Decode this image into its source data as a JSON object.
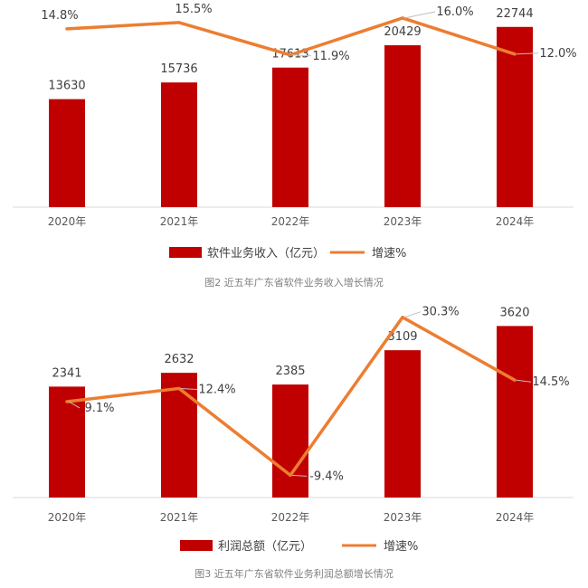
{
  "chart_data": [
    {
      "type": "bar",
      "title": "",
      "caption": "图2  近五年广东省软件业务收入增长情况",
      "categories": [
        "2020年",
        "2021年",
        "2022年",
        "2023年",
        "2024年"
      ],
      "series": [
        {
          "name": "软件业务收入（亿元）",
          "type": "bar",
          "values": [
            13630,
            15736,
            17613,
            20429,
            22744
          ],
          "color": "#C00000"
        },
        {
          "name": "增速%",
          "type": "line",
          "values": [
            14.8,
            15.5,
            11.9,
            16.0,
            12.0
          ],
          "labels": [
            "14.8%",
            "15.5%",
            "11.9%",
            "16.0%",
            "12.0%"
          ],
          "color": "#ED7D31"
        }
      ],
      "bar_ylim": [
        0,
        25000
      ],
      "line_ylim": [
        -5,
        17
      ],
      "legend_position": "bottom",
      "grid": false
    },
    {
      "type": "bar",
      "title": "",
      "caption": "图3  近五年广东省软件业务利润总额增长情况",
      "categories": [
        "2020年",
        "2021年",
        "2022年",
        "2023年",
        "2024年"
      ],
      "series": [
        {
          "name": "利润总额（亿元）",
          "type": "bar",
          "values": [
            2341,
            2632,
            2385,
            3109,
            3620
          ],
          "color": "#C00000"
        },
        {
          "name": "增速%",
          "type": "line",
          "values": [
            9.1,
            12.4,
            -9.4,
            30.3,
            14.5
          ],
          "labels": [
            "9.1%",
            "12.4%",
            "-9.4%",
            "30.3%",
            "14.5%"
          ],
          "color": "#ED7D31"
        }
      ],
      "bar_ylim": [
        0,
        4200
      ],
      "line_ylim": [
        -15,
        35
      ],
      "legend_position": "bottom",
      "grid": false
    }
  ]
}
